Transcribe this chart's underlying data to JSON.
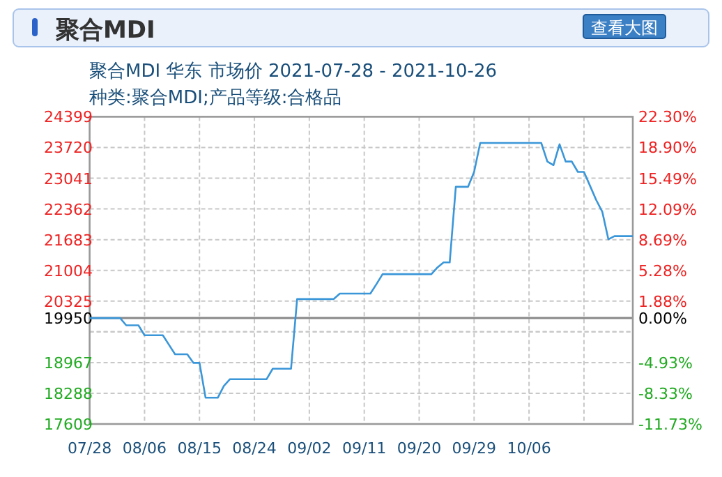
{
  "chart_data": {
    "type": "line",
    "title": "聚合MDI",
    "subtitle": [
      "聚合MDI 华东 市场价 2021-07-28 - 2021-10-26",
      "种类:聚合MDI;产品等级:合格品"
    ],
    "annotations": [
      "查看大图"
    ],
    "series": [
      {
        "color": "#3a96d8",
        "values": [
          19950,
          19950,
          19950,
          19950,
          19950,
          19950,
          19790,
          19790,
          19790,
          19570,
          19570,
          19570,
          19570,
          19360,
          19150,
          19150,
          19150,
          18960,
          18960,
          18190,
          18190,
          18190,
          18450,
          18600,
          18600,
          18600,
          18600,
          18600,
          18600,
          18600,
          18830,
          18830,
          18830,
          18830,
          20370,
          20370,
          20370,
          20370,
          20370,
          20370,
          20370,
          20490,
          20490,
          20490,
          20490,
          20490,
          20490,
          20700,
          20920,
          20920,
          20920,
          20920,
          20920,
          20920,
          20920,
          20920,
          20920,
          21070,
          21180,
          21180,
          22850,
          22850,
          22850,
          23180,
          23820,
          23820,
          23820,
          23820,
          23820,
          23820,
          23820,
          23820,
          23820,
          23820,
          23820,
          23410,
          23330,
          23790,
          23410,
          23410,
          23180,
          23180,
          22870,
          22560,
          22300,
          21690,
          21760,
          21760,
          21760,
          21760
        ]
      }
    ],
    "categories": [
      "07/28",
      null,
      null,
      null,
      null,
      null,
      null,
      null,
      null,
      "08/06",
      null,
      null,
      null,
      null,
      null,
      null,
      null,
      null,
      "08/15",
      null,
      null,
      null,
      null,
      null,
      null,
      null,
      null,
      "08/24",
      null,
      null,
      null,
      null,
      null,
      null,
      null,
      null,
      "09/02",
      null,
      null,
      null,
      null,
      null,
      null,
      null,
      null,
      "09/11",
      null,
      null,
      null,
      null,
      null,
      null,
      null,
      null,
      "09/20",
      null,
      null,
      null,
      null,
      null,
      null,
      null,
      null,
      "09/29",
      null,
      null,
      null,
      null,
      null,
      null,
      null,
      null,
      "10/06",
      null,
      null,
      null,
      null,
      null,
      null,
      null,
      null,
      null,
      null,
      null,
      null,
      null,
      null,
      null,
      null,
      null
    ],
    "ylim": [
      17609,
      24399
    ],
    "yticks": [
      17609,
      18288,
      18967,
      {
        "value": 19646,
        "label": null
      },
      19950,
      20325,
      21004,
      21683,
      22362,
      23041,
      23720,
      24399
    ],
    "y2lim": [
      -11.73,
      22.3
    ],
    "y2ticks": [
      {
        "value": -11.73,
        "label": "-11.73%"
      },
      {
        "value": -8.33,
        "label": "-8.33%"
      },
      {
        "value": -4.93,
        "label": "-4.93%"
      },
      {
        "value": -1.52,
        "label": null
      },
      {
        "value": 0,
        "label": "0.00%"
      },
      {
        "value": 1.88,
        "label": "1.88%"
      },
      {
        "value": 5.28,
        "label": "5.28%"
      },
      {
        "value": 8.69,
        "label": "8.69%"
      },
      {
        "value": 12.09,
        "label": "12.09%"
      },
      {
        "value": 15.49,
        "label": "15.49%"
      },
      {
        "value": 18.9,
        "label": "18.90%"
      },
      {
        "value": 22.3,
        "label": "22.30%"
      }
    ],
    "ref_lines": [
      {
        "axis": "y",
        "value": 19950,
        "color": "#888888"
      }
    ],
    "grid": true,
    "marker": "none",
    "line_style": "solid"
  }
}
